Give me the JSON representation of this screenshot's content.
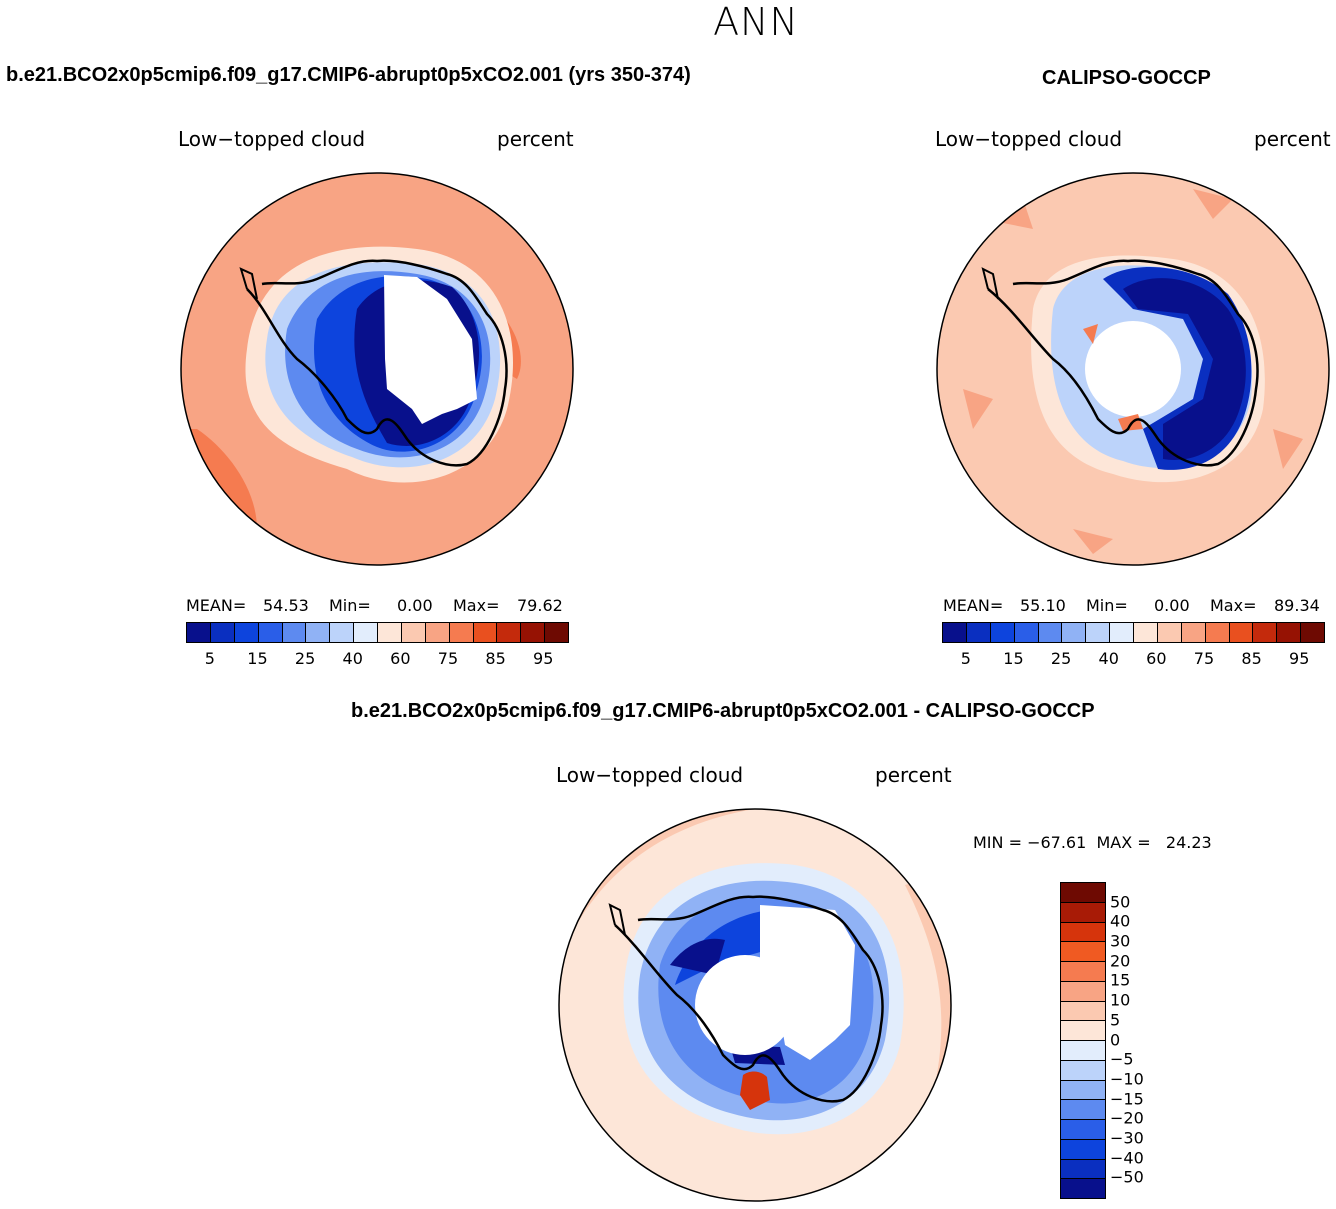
{
  "page_title": "ANN",
  "palette_abs": [
    "#08108c",
    "#0a2fc0",
    "#0d44dd",
    "#2a5ee8",
    "#5d8af0",
    "#90b2f5",
    "#bcd3fa",
    "#e2edfc",
    "#fde6d8",
    "#fbc9b1",
    "#f8a484",
    "#f57b50",
    "#e9501f",
    "#c42a0c",
    "#961203",
    "#6e0a02"
  ],
  "palette_diff": [
    "#6e0a02",
    "#a81b06",
    "#d6340c",
    "#f05a22",
    "#f57b50",
    "#f8a484",
    "#fbc9b1",
    "#fde6d8",
    "#e2edfc",
    "#bcd3fa",
    "#90b2f5",
    "#5d8af0",
    "#2a5ee8",
    "#0d44dd",
    "#0a2fc0",
    "#08108c"
  ],
  "panels": {
    "model": {
      "header": "b.e21.BCO2x0p5cmip6.f09_g17.CMIP6-abrupt0p5xCO2.001 (yrs 350-374)",
      "var_label": "Low−topped cloud",
      "unit_label": "percent",
      "mean_label": "MEAN=",
      "mean_value": "54.53",
      "min_label": "Min=",
      "min_value": "0.00",
      "max_label": "Max=",
      "max_value": "79.62"
    },
    "obs": {
      "header": "CALIPSO-GOCCP",
      "var_label": "Low−topped cloud",
      "unit_label": "percent",
      "mean_label": "MEAN=",
      "mean_value": "55.10",
      "min_label": "Min=",
      "min_value": "0.00",
      "max_label": "Max=",
      "max_value": "89.34"
    },
    "diff": {
      "header": "b.e21.BCO2x0p5cmip6.f09_g17.CMIP6-abrupt0p5xCO2.001 - CALIPSO-GOCCP",
      "var_label": "Low−topped cloud",
      "unit_label": "percent",
      "minmax_text": "MIN = −67.61  MAX =   24.23"
    }
  },
  "abs_ticks": [
    "5",
    "15",
    "25",
    "40",
    "60",
    "75",
    "85",
    "95"
  ],
  "diff_ticks": [
    "50",
    "40",
    "30",
    "20",
    "15",
    "10",
    "5",
    "0",
    "−5",
    "−10",
    "−15",
    "−20",
    "−30",
    "−40",
    "−50"
  ]
}
